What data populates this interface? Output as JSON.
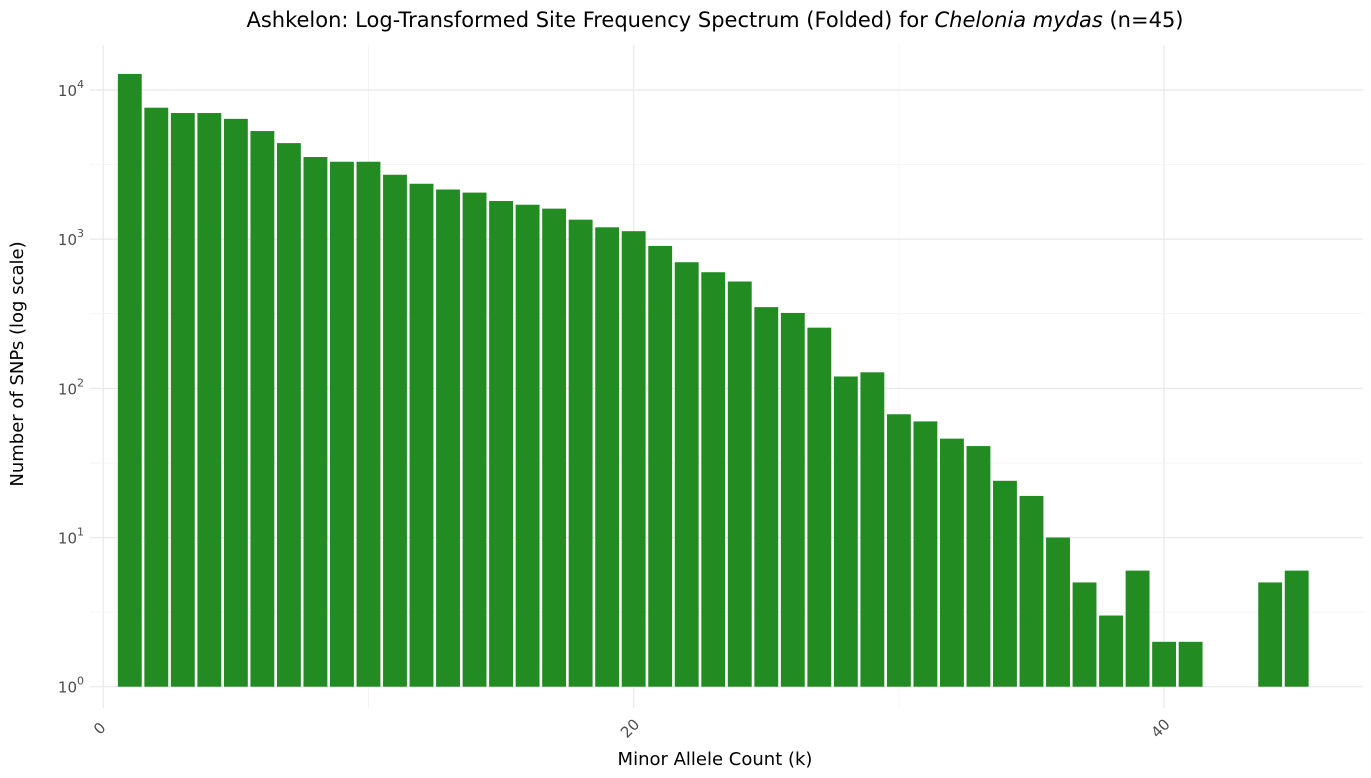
{
  "chart_data": {
    "type": "bar",
    "title_prefix": "Ashkelon: Log-Transformed Site Frequency Spectrum (Folded) for ",
    "title_species": "Chelonia mydas",
    "title_suffix": " (n=45)",
    "xlabel": "Minor Allele Count (k)",
    "ylabel": "Number of SNPs (log scale)",
    "x_scale": "linear",
    "y_scale": "log10",
    "xlim": [
      -0.5,
      47.5
    ],
    "ylim": [
      0.72,
      20000
    ],
    "x_ticks": [
      0,
      20,
      40
    ],
    "y_ticks": [
      {
        "value": 1,
        "base": "10",
        "exp": "0"
      },
      {
        "value": 10,
        "base": "10",
        "exp": "1"
      },
      {
        "value": 100,
        "base": "10",
        "exp": "2"
      },
      {
        "value": 1000,
        "base": "10",
        "exp": "3"
      },
      {
        "value": 10000,
        "base": "10",
        "exp": "4"
      }
    ],
    "bar_color": "#228b22",
    "grid": true,
    "x": [
      1,
      2,
      3,
      4,
      5,
      6,
      7,
      8,
      9,
      10,
      11,
      12,
      13,
      14,
      15,
      16,
      17,
      18,
      19,
      20,
      21,
      22,
      23,
      24,
      25,
      26,
      27,
      28,
      29,
      30,
      31,
      32,
      33,
      34,
      35,
      36,
      37,
      38,
      39,
      40,
      41,
      42,
      43,
      44,
      45
    ],
    "values": [
      12800,
      7600,
      7000,
      7000,
      6400,
      5300,
      4400,
      3550,
      3300,
      3300,
      2700,
      2350,
      2150,
      2050,
      1800,
      1700,
      1600,
      1350,
      1200,
      1130,
      900,
      700,
      600,
      520,
      350,
      320,
      255,
      120,
      128,
      67,
      60,
      46,
      41,
      24,
      19,
      10,
      5,
      3,
      6,
      2,
      2,
      1,
      1,
      5,
      6
    ]
  }
}
